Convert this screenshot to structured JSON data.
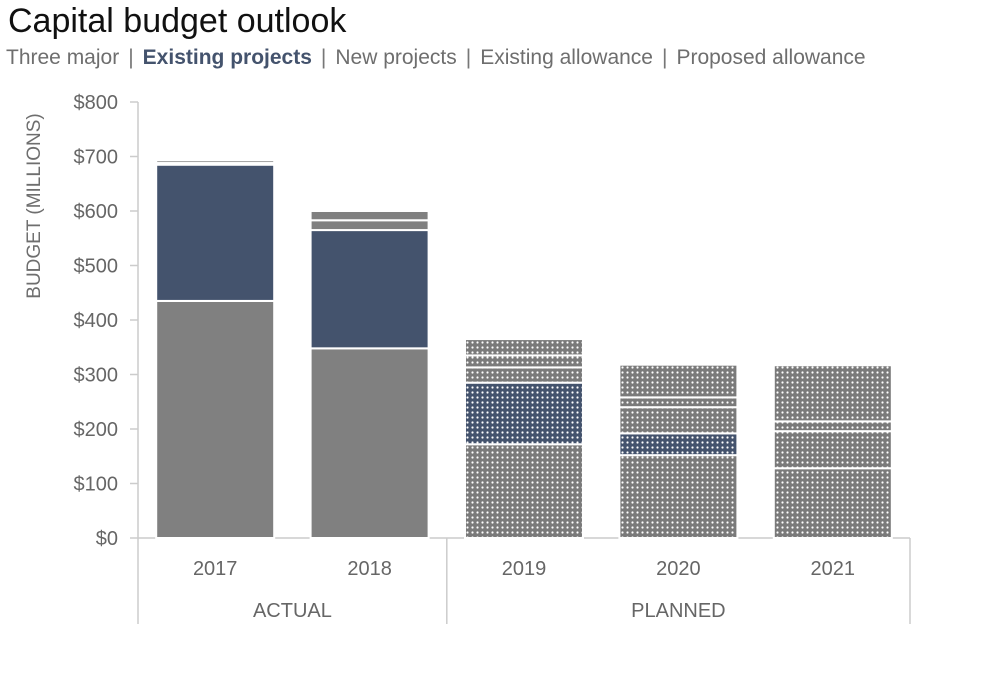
{
  "chart_data": {
    "type": "bar",
    "stacked": true,
    "title": "Capital budget outlook",
    "legend": [
      "Three major",
      "Existing projects",
      "New projects",
      "Existing allowance",
      "Proposed allowance"
    ],
    "highlighted_series": "Existing projects",
    "ylabel": "BUDGET (MILLIONS)",
    "ylim": [
      0,
      800
    ],
    "yticks": [
      "$0",
      "$100",
      "$200",
      "$300",
      "$400",
      "$500",
      "$600",
      "$700",
      "$800"
    ],
    "ytick_values": [
      0,
      100,
      200,
      300,
      400,
      500,
      600,
      700,
      800
    ],
    "categories": [
      "2017",
      "2018",
      "2019",
      "2020",
      "2021"
    ],
    "groups": [
      {
        "label": "ACTUAL",
        "categories": [
          "2017",
          "2018"
        ]
      },
      {
        "label": "PLANNED",
        "categories": [
          "2019",
          "2020",
          "2021"
        ]
      }
    ],
    "planned_categories": [
      "2019",
      "2020",
      "2021"
    ],
    "series": [
      {
        "name": "Three major",
        "values": [
          435,
          348,
          172,
          152,
          128
        ]
      },
      {
        "name": "Existing projects",
        "values": [
          250,
          217,
          113,
          40,
          0
        ]
      },
      {
        "name": "New projects",
        "values": [
          0,
          0,
          28,
          48,
          68
        ]
      },
      {
        "name": "Existing allowance",
        "values": [
          3,
          18,
          22,
          18,
          18
        ]
      },
      {
        "name": "Proposed allowance",
        "values": [
          5,
          17,
          30,
          60,
          103
        ]
      }
    ],
    "colors": {
      "Three major": "#808080",
      "Existing projects": "#44536d",
      "New projects": "#808080",
      "Existing allowance": "#808080",
      "Proposed allowance": "#808080",
      "axis": "#cccccc",
      "tick_text": "#666666"
    },
    "grid": false
  }
}
